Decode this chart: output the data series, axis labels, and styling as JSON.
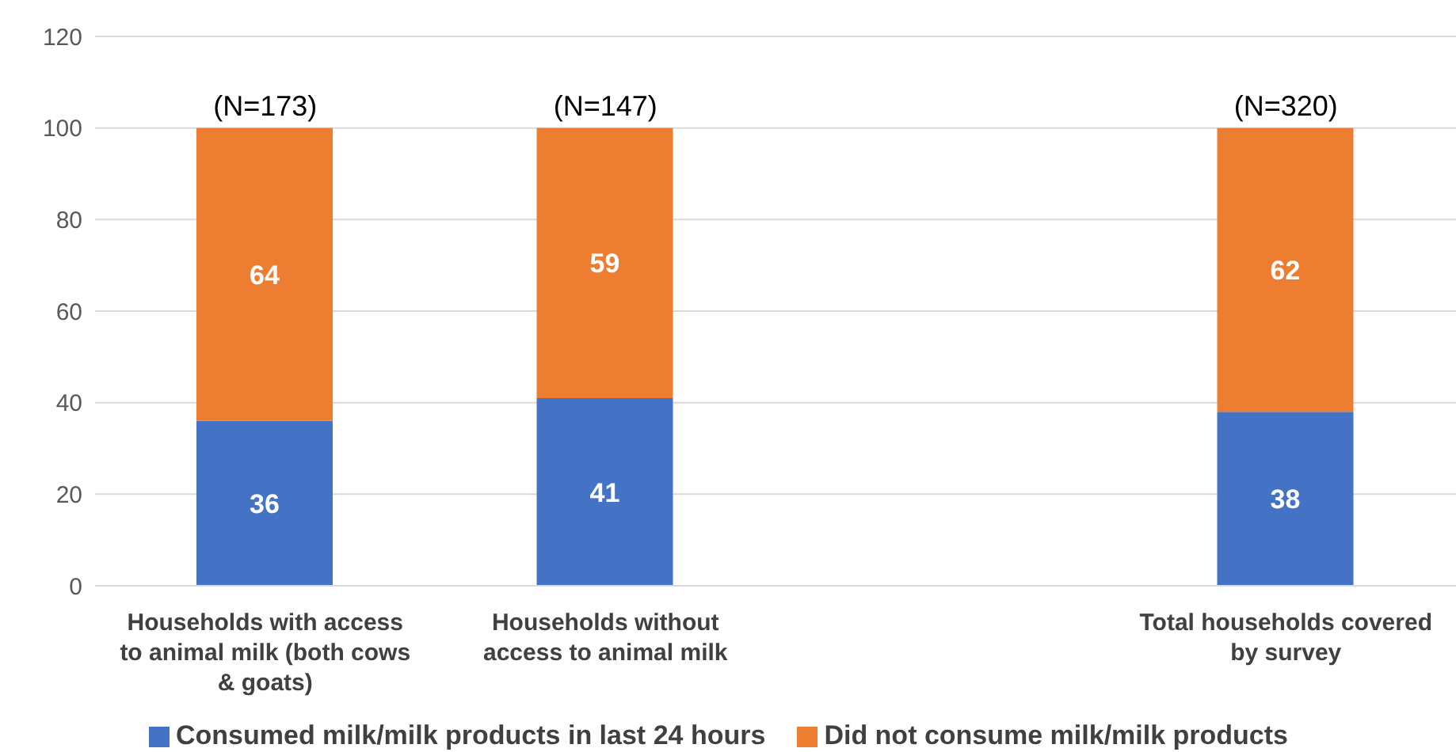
{
  "chart_data": {
    "type": "bar",
    "stacked": true,
    "categories": [
      "Households with access to animal milk (both cows & goats)",
      "Households without access to animal milk",
      null,
      "Total households covered by survey"
    ],
    "series": [
      {
        "name": "Consumed milk/milk products in last 24 hours",
        "color": "#4472c4",
        "values": [
          36,
          41,
          null,
          38
        ]
      },
      {
        "name": "Did not consume milk/milk products",
        "color": "#ed7d31",
        "values": [
          64,
          59,
          null,
          62
        ]
      }
    ],
    "ylim": [
      0,
      120
    ],
    "yticks": [
      0,
      20,
      40,
      60,
      80,
      100,
      120
    ],
    "grid": "y",
    "legend": "bottom",
    "data_labels": true,
    "annotations": [
      "(N=173)",
      "(N=147)",
      "(N=320)"
    ]
  }
}
